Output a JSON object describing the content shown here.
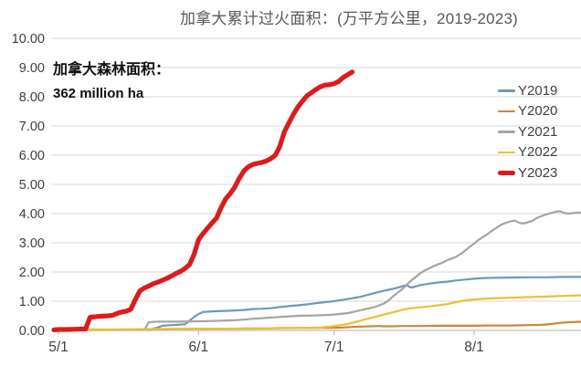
{
  "title": "加拿大累计过火面积：(万平方公里，2019-2023)",
  "annotation": {
    "line1": "加拿大森林面积：",
    "line2": "362 million ha"
  },
  "colors": {
    "title_text": "#595959",
    "axis_text": "#404040",
    "gridline": "#d9d9d9",
    "axis_line": "#bfbfbf",
    "annotation_text": "#111111"
  },
  "chart_data": {
    "type": "line",
    "title": "加拿大累计过火面积：(万平方公里，2019-2023)",
    "xlabel": "",
    "ylabel": "",
    "x_unit": "days since 5/1",
    "ylim": [
      0,
      10
    ],
    "grid": true,
    "legend_position": "right-inside",
    "y_tick_labels": [
      "0.00",
      "1.00",
      "2.00",
      "3.00",
      "4.00",
      "5.00",
      "6.00",
      "7.00",
      "8.00",
      "9.00",
      "10.00"
    ],
    "x_ticks": [
      {
        "day": 0,
        "label": "5/1"
      },
      {
        "day": 31,
        "label": "6/1"
      },
      {
        "day": 61,
        "label": "7/1"
      },
      {
        "day": 92,
        "label": "8/1"
      }
    ],
    "series": [
      {
        "name": "Y2019",
        "color": "#6e99b7",
        "width": 2.2,
        "points": [
          [
            20,
            0.02
          ],
          [
            22,
            0.1
          ],
          [
            23,
            0.16
          ],
          [
            25,
            0.18
          ],
          [
            27,
            0.2
          ],
          [
            28,
            0.21
          ],
          [
            29,
            0.33
          ],
          [
            30,
            0.46
          ],
          [
            31,
            0.56
          ],
          [
            32,
            0.63
          ],
          [
            33,
            0.64
          ],
          [
            35,
            0.66
          ],
          [
            37,
            0.67
          ],
          [
            39,
            0.68
          ],
          [
            41,
            0.7
          ],
          [
            43,
            0.73
          ],
          [
            45,
            0.74
          ],
          [
            47,
            0.76
          ],
          [
            49,
            0.8
          ],
          [
            51,
            0.83
          ],
          [
            53,
            0.86
          ],
          [
            55,
            0.89
          ],
          [
            57,
            0.93
          ],
          [
            59,
            0.97
          ],
          [
            61,
            1.0
          ],
          [
            63,
            1.05
          ],
          [
            65,
            1.1
          ],
          [
            67,
            1.16
          ],
          [
            69,
            1.24
          ],
          [
            71,
            1.32
          ],
          [
            73,
            1.39
          ],
          [
            75,
            1.46
          ],
          [
            77,
            1.55
          ],
          [
            78,
            1.47
          ],
          [
            79,
            1.5
          ],
          [
            80,
            1.55
          ],
          [
            82,
            1.6
          ],
          [
            84,
            1.64
          ],
          [
            86,
            1.67
          ],
          [
            88,
            1.71
          ],
          [
            90,
            1.74
          ],
          [
            92,
            1.77
          ],
          [
            94,
            1.79
          ],
          [
            96,
            1.8
          ],
          [
            100,
            1.81
          ],
          [
            104,
            1.82
          ],
          [
            108,
            1.82
          ],
          [
            112,
            1.83
          ],
          [
            116,
            1.83
          ]
        ]
      },
      {
        "name": "Y2020",
        "color": "#cf863b",
        "width": 2.2,
        "points": [
          [
            0,
            0.01
          ],
          [
            8,
            0.02
          ],
          [
            16,
            0.03
          ],
          [
            22,
            0.04
          ],
          [
            26,
            0.05
          ],
          [
            30,
            0.05
          ],
          [
            34,
            0.06
          ],
          [
            38,
            0.06
          ],
          [
            42,
            0.07
          ],
          [
            46,
            0.07
          ],
          [
            50,
            0.08
          ],
          [
            54,
            0.08
          ],
          [
            58,
            0.09
          ],
          [
            61,
            0.09
          ],
          [
            63,
            0.1
          ],
          [
            65,
            0.12
          ],
          [
            67,
            0.13
          ],
          [
            69,
            0.14
          ],
          [
            71,
            0.15
          ],
          [
            72,
            0.14
          ],
          [
            74,
            0.14
          ],
          [
            76,
            0.15
          ],
          [
            80,
            0.15
          ],
          [
            84,
            0.16
          ],
          [
            88,
            0.16
          ],
          [
            92,
            0.16
          ],
          [
            96,
            0.17
          ],
          [
            100,
            0.17
          ],
          [
            104,
            0.18
          ],
          [
            107,
            0.19
          ],
          [
            109,
            0.22
          ],
          [
            111,
            0.26
          ],
          [
            113,
            0.28
          ],
          [
            116,
            0.3
          ]
        ]
      },
      {
        "name": "Y2021",
        "color": "#a5a5a5",
        "width": 2.2,
        "points": [
          [
            19,
            0.02
          ],
          [
            20,
            0.28
          ],
          [
            22,
            0.3
          ],
          [
            26,
            0.3
          ],
          [
            30,
            0.31
          ],
          [
            33,
            0.32
          ],
          [
            36,
            0.33
          ],
          [
            39,
            0.35
          ],
          [
            41,
            0.37
          ],
          [
            43,
            0.4
          ],
          [
            45,
            0.42
          ],
          [
            47,
            0.44
          ],
          [
            49,
            0.46
          ],
          [
            51,
            0.48
          ],
          [
            53,
            0.5
          ],
          [
            56,
            0.51
          ],
          [
            58,
            0.52
          ],
          [
            60,
            0.53
          ],
          [
            62,
            0.56
          ],
          [
            64,
            0.59
          ],
          [
            66,
            0.66
          ],
          [
            68,
            0.73
          ],
          [
            70,
            0.8
          ],
          [
            72,
            0.92
          ],
          [
            73,
            1.02
          ],
          [
            74,
            1.16
          ],
          [
            75,
            1.28
          ],
          [
            76,
            1.4
          ],
          [
            77,
            1.55
          ],
          [
            78,
            1.7
          ],
          [
            79,
            1.82
          ],
          [
            80,
            1.95
          ],
          [
            81,
            2.05
          ],
          [
            82,
            2.12
          ],
          [
            83,
            2.2
          ],
          [
            84,
            2.26
          ],
          [
            85,
            2.32
          ],
          [
            86,
            2.4
          ],
          [
            87,
            2.46
          ],
          [
            88,
            2.52
          ],
          [
            89,
            2.62
          ],
          [
            90,
            2.73
          ],
          [
            91,
            2.86
          ],
          [
            92,
            2.97
          ],
          [
            93,
            3.1
          ],
          [
            94,
            3.2
          ],
          [
            95,
            3.3
          ],
          [
            96,
            3.42
          ],
          [
            97,
            3.52
          ],
          [
            98,
            3.62
          ],
          [
            99,
            3.68
          ],
          [
            100,
            3.73
          ],
          [
            101,
            3.76
          ],
          [
            102,
            3.68
          ],
          [
            103,
            3.66
          ],
          [
            104,
            3.71
          ],
          [
            105,
            3.76
          ],
          [
            106,
            3.86
          ],
          [
            107,
            3.92
          ],
          [
            108,
            3.97
          ],
          [
            109,
            4.02
          ],
          [
            110,
            4.06
          ],
          [
            111,
            4.08
          ],
          [
            112,
            4.02
          ],
          [
            113,
            4.0
          ],
          [
            114,
            4.02
          ],
          [
            115,
            4.03
          ],
          [
            116,
            4.03
          ]
        ]
      },
      {
        "name": "Y2022",
        "color": "#edc02f",
        "width": 2.2,
        "points": [
          [
            0,
            0.02
          ],
          [
            6,
            0.03
          ],
          [
            12,
            0.03
          ],
          [
            18,
            0.04
          ],
          [
            24,
            0.05
          ],
          [
            30,
            0.05
          ],
          [
            36,
            0.06
          ],
          [
            42,
            0.06
          ],
          [
            48,
            0.07
          ],
          [
            53,
            0.08
          ],
          [
            56,
            0.09
          ],
          [
            58,
            0.1
          ],
          [
            60,
            0.13
          ],
          [
            62,
            0.17
          ],
          [
            64,
            0.22
          ],
          [
            66,
            0.3
          ],
          [
            68,
            0.38
          ],
          [
            70,
            0.46
          ],
          [
            72,
            0.54
          ],
          [
            74,
            0.62
          ],
          [
            75,
            0.66
          ],
          [
            76,
            0.7
          ],
          [
            77,
            0.73
          ],
          [
            78,
            0.76
          ],
          [
            80,
            0.79
          ],
          [
            82,
            0.82
          ],
          [
            84,
            0.86
          ],
          [
            86,
            0.9
          ],
          [
            88,
            0.97
          ],
          [
            90,
            1.03
          ],
          [
            92,
            1.06
          ],
          [
            94,
            1.08
          ],
          [
            96,
            1.1
          ],
          [
            100,
            1.12
          ],
          [
            104,
            1.14
          ],
          [
            108,
            1.16
          ],
          [
            112,
            1.18
          ],
          [
            116,
            1.2
          ]
        ]
      },
      {
        "name": "Y2023",
        "color": "#e01a1a",
        "width": 5.2,
        "points": [
          [
            -1,
            0.02
          ],
          [
            0,
            0.03
          ],
          [
            2,
            0.03
          ],
          [
            4,
            0.04
          ],
          [
            6,
            0.05
          ],
          [
            7,
            0.45
          ],
          [
            9,
            0.48
          ],
          [
            11,
            0.5
          ],
          [
            12,
            0.52
          ],
          [
            13,
            0.58
          ],
          [
            14,
            0.63
          ],
          [
            15,
            0.66
          ],
          [
            16,
            0.72
          ],
          [
            17,
            1.05
          ],
          [
            18,
            1.35
          ],
          [
            19,
            1.45
          ],
          [
            20,
            1.52
          ],
          [
            21,
            1.6
          ],
          [
            22,
            1.65
          ],
          [
            23,
            1.72
          ],
          [
            24,
            1.78
          ],
          [
            25,
            1.86
          ],
          [
            26,
            1.95
          ],
          [
            27,
            2.02
          ],
          [
            28,
            2.12
          ],
          [
            29,
            2.25
          ],
          [
            30,
            2.6
          ],
          [
            31,
            3.1
          ],
          [
            32,
            3.32
          ],
          [
            33,
            3.5
          ],
          [
            34,
            3.68
          ],
          [
            35,
            3.85
          ],
          [
            36,
            4.2
          ],
          [
            37,
            4.5
          ],
          [
            38,
            4.68
          ],
          [
            39,
            4.9
          ],
          [
            40,
            5.2
          ],
          [
            41,
            5.45
          ],
          [
            42,
            5.6
          ],
          [
            43,
            5.68
          ],
          [
            44,
            5.72
          ],
          [
            45,
            5.75
          ],
          [
            46,
            5.8
          ],
          [
            47,
            5.88
          ],
          [
            48,
            6.0
          ],
          [
            49,
            6.3
          ],
          [
            50,
            6.8
          ],
          [
            51,
            7.1
          ],
          [
            52,
            7.4
          ],
          [
            53,
            7.65
          ],
          [
            54,
            7.85
          ],
          [
            55,
            8.03
          ],
          [
            56,
            8.14
          ],
          [
            57,
            8.25
          ],
          [
            58,
            8.34
          ],
          [
            59,
            8.4
          ],
          [
            60,
            8.41
          ],
          [
            61,
            8.45
          ],
          [
            62,
            8.52
          ],
          [
            63,
            8.66
          ],
          [
            64,
            8.75
          ],
          [
            65,
            8.85
          ]
        ]
      }
    ]
  }
}
